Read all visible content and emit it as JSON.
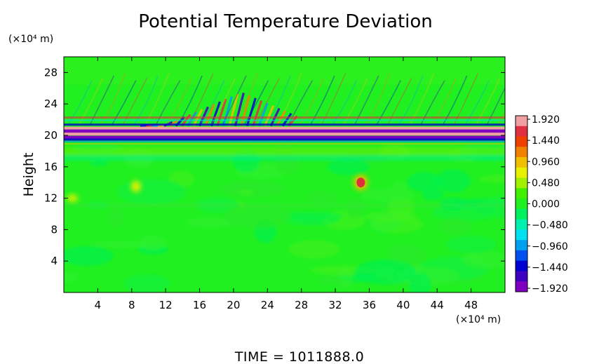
{
  "chart_data": {
    "type": "heatmap",
    "title": "Potential Temperature Deviation",
    "ylabel": "Height",
    "xunit": "(×10⁴ m)",
    "yunit": "(×10⁴ m)",
    "footer": "TIME = 1011888.0",
    "xlim": [
      0,
      52
    ],
    "ylim": [
      0,
      30
    ],
    "xticks": [
      4,
      8,
      12,
      16,
      20,
      24,
      28,
      32,
      36,
      40,
      44,
      48
    ],
    "yticks": [
      4,
      8,
      12,
      16,
      20,
      24,
      28
    ],
    "colorbar": {
      "range": [
        -1.92,
        1.92
      ],
      "ticks": [
        "1.920",
        "1.440",
        "0.960",
        "0.480",
        "0.000",
        "−0.480",
        "−0.960",
        "−1.440",
        "−1.920"
      ],
      "colors": [
        "#f0a0a0",
        "#e03040",
        "#f04000",
        "#f08000",
        "#f0c000",
        "#e8f000",
        "#a0f000",
        "#40f000",
        "#20f020",
        "#00f060",
        "#00f0b0",
        "#00e0f0",
        "#00a0f0",
        "#0050f0",
        "#0000d0",
        "#4000c0",
        "#8000c0"
      ]
    },
    "features": [
      {
        "type": "band",
        "y": 20.4,
        "description": "strong alternating deviation layer"
      },
      {
        "type": "wave_packet",
        "x": [
          14,
          26
        ],
        "y": [
          21,
          25
        ]
      },
      {
        "type": "plume",
        "x": 35,
        "y": 14,
        "value": 1.9
      },
      {
        "type": "plume",
        "x": 8.5,
        "y": 13.5,
        "value": 0.6
      }
    ]
  }
}
